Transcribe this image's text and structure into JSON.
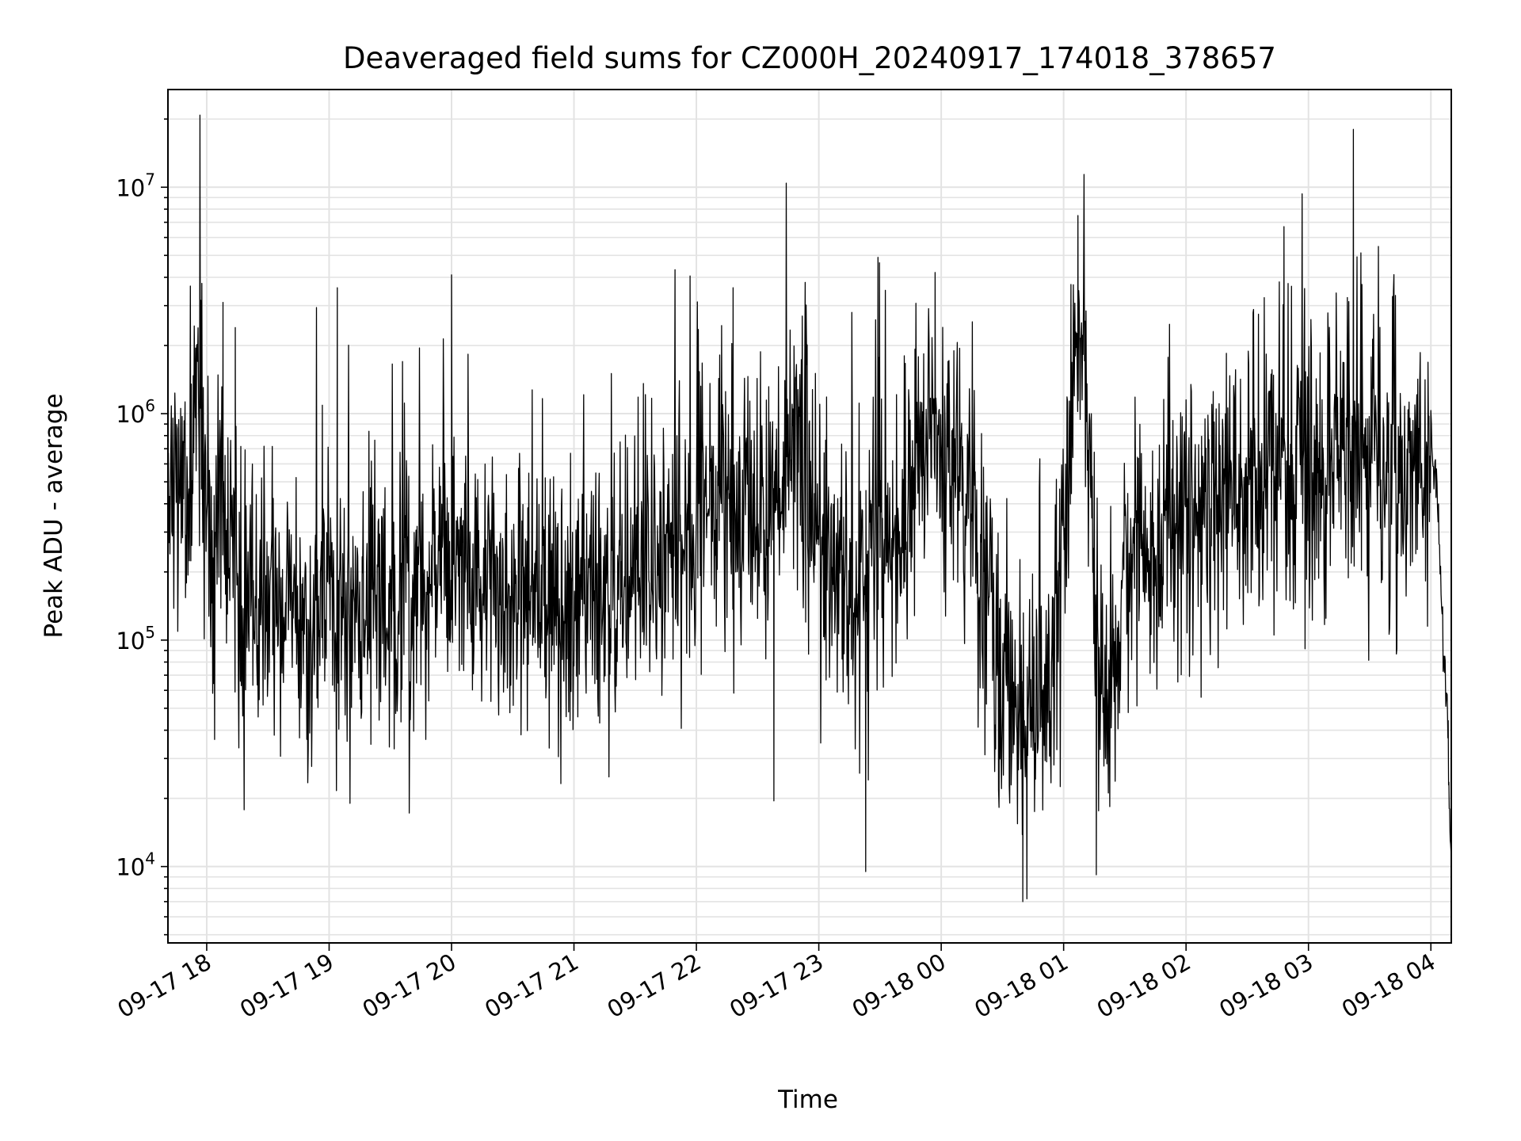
{
  "chart_data": {
    "type": "line",
    "title": "Deaveraged field sums for CZ000H_20240917_174018_378657",
    "xlabel": "Time",
    "ylabel": "Peak ADU - average",
    "y_scale": "log",
    "ylim": [
      4600,
      27000000
    ],
    "xlim": [
      "2024-09-17 17:41",
      "2024-09-18 04:10"
    ],
    "grid": true,
    "line_color": "#000000",
    "x_ticks": [
      {
        "t": "2024-09-17 18:00",
        "label": "09-17 18"
      },
      {
        "t": "2024-09-17 19:00",
        "label": "09-17 19"
      },
      {
        "t": "2024-09-17 20:00",
        "label": "09-17 20"
      },
      {
        "t": "2024-09-17 21:00",
        "label": "09-17 21"
      },
      {
        "t": "2024-09-17 22:00",
        "label": "09-17 22"
      },
      {
        "t": "2024-09-17 23:00",
        "label": "09-17 23"
      },
      {
        "t": "2024-09-18 00:00",
        "label": "09-18 00"
      },
      {
        "t": "2024-09-18 01:00",
        "label": "09-18 01"
      },
      {
        "t": "2024-09-18 02:00",
        "label": "09-18 02"
      },
      {
        "t": "2024-09-18 03:00",
        "label": "09-18 03"
      },
      {
        "t": "2024-09-18 04:00",
        "label": "09-18 04"
      }
    ],
    "y_ticks": [
      {
        "value": 10000,
        "base": "10",
        "exp": "4"
      },
      {
        "value": 100000,
        "base": "10",
        "exp": "5"
      },
      {
        "value": 1000000,
        "base": "10",
        "exp": "6"
      },
      {
        "value": 10000000,
        "base": "10",
        "exp": "7"
      }
    ],
    "series": [
      {
        "x": [
          "2024-09-17 17:41",
          "2024-09-17 17:47",
          "2024-09-17 17:52",
          "2024-09-17 17:56",
          "2024-09-17 17:59",
          "2024-09-17 18:02",
          "2024-09-17 18:06",
          "2024-09-17 18:09",
          "2024-09-17 18:12",
          "2024-09-17 18:16",
          "2024-09-17 18:20",
          "2024-09-17 18:25",
          "2024-09-17 18:30",
          "2024-09-17 18:35",
          "2024-09-17 18:40",
          "2024-09-17 18:45",
          "2024-09-17 18:50",
          "2024-09-17 18:55",
          "2024-09-17 19:00",
          "2024-09-17 19:05",
          "2024-09-17 19:10",
          "2024-09-17 19:20",
          "2024-09-17 19:30",
          "2024-09-17 19:40",
          "2024-09-17 19:50",
          "2024-09-17 19:55",
          "2024-09-17 20:00",
          "2024-09-17 20:05",
          "2024-09-17 20:10",
          "2024-09-17 20:20",
          "2024-09-17 20:30",
          "2024-09-17 20:40",
          "2024-09-17 20:50",
          "2024-09-17 21:00",
          "2024-09-17 21:10",
          "2024-09-17 21:20",
          "2024-09-17 21:30",
          "2024-09-17 21:40",
          "2024-09-17 21:50",
          "2024-09-17 22:00",
          "2024-09-17 22:05",
          "2024-09-17 22:10",
          "2024-09-17 22:15",
          "2024-09-17 22:20",
          "2024-09-17 22:25",
          "2024-09-17 22:30",
          "2024-09-17 22:35",
          "2024-09-17 22:40",
          "2024-09-17 22:45",
          "2024-09-17 22:50",
          "2024-09-17 22:55",
          "2024-09-17 23:00",
          "2024-09-17 23:05",
          "2024-09-17 23:10",
          "2024-09-17 23:15",
          "2024-09-17 23:20",
          "2024-09-17 23:25",
          "2024-09-17 23:30",
          "2024-09-17 23:35",
          "2024-09-17 23:40",
          "2024-09-17 23:45",
          "2024-09-17 23:50",
          "2024-09-17 23:55",
          "2024-09-18 00:00",
          "2024-09-18 00:05",
          "2024-09-18 00:10",
          "2024-09-18 00:15",
          "2024-09-18 00:20",
          "2024-09-18 00:25",
          "2024-09-18 00:30",
          "2024-09-18 00:35",
          "2024-09-18 00:40",
          "2024-09-18 00:45",
          "2024-09-18 00:50",
          "2024-09-18 00:55",
          "2024-09-18 01:00",
          "2024-09-18 01:05",
          "2024-09-18 01:10",
          "2024-09-18 01:15",
          "2024-09-18 01:20",
          "2024-09-18 01:25",
          "2024-09-18 01:30",
          "2024-09-18 01:35",
          "2024-09-18 01:40",
          "2024-09-18 01:45",
          "2024-09-18 01:50",
          "2024-09-18 01:55",
          "2024-09-18 02:00",
          "2024-09-18 02:10",
          "2024-09-18 02:20",
          "2024-09-18 02:30",
          "2024-09-18 02:40",
          "2024-09-18 02:50",
          "2024-09-18 03:00",
          "2024-09-18 03:10",
          "2024-09-18 03:20",
          "2024-09-18 03:30",
          "2024-09-18 03:40",
          "2024-09-18 03:50",
          "2024-09-18 03:55",
          "2024-09-18 04:00",
          "2024-09-18 04:03",
          "2024-09-18 04:06",
          "2024-09-18 04:08",
          "2024-09-18 04:10"
        ],
        "y": [
          600000,
          450000,
          500000,
          1300000,
          900000,
          300000,
          550000,
          250000,
          300000,
          110000,
          160000,
          130000,
          150000,
          170000,
          180000,
          140000,
          130000,
          150000,
          170000,
          140000,
          130000,
          160000,
          150000,
          140000,
          170000,
          250000,
          230000,
          220000,
          170000,
          140000,
          150000,
          160000,
          140000,
          170000,
          190000,
          200000,
          180000,
          220000,
          260000,
          300000,
          450000,
          500000,
          350000,
          320000,
          400000,
          400000,
          420000,
          500000,
          650000,
          800000,
          500000,
          300000,
          250000,
          200000,
          130000,
          180000,
          250000,
          350000,
          250000,
          350000,
          500000,
          700000,
          1000000,
          600000,
          500000,
          550000,
          400000,
          200000,
          130000,
          80000,
          50000,
          40000,
          50000,
          40000,
          120000,
          400000,
          1500000,
          2500000,
          150000,
          50000,
          80000,
          200000,
          250000,
          250000,
          300000,
          330000,
          350000,
          400000,
          450000,
          500000,
          500000,
          500000,
          600000,
          600000,
          700000,
          800000,
          700000,
          500000,
          550000,
          650000,
          850000,
          500000,
          90000,
          50000,
          10000
        ]
      }
    ],
    "spikes": [
      {
        "x": "2024-09-17 18:08",
        "y": 3100000
      },
      {
        "x": "2024-09-17 18:14",
        "y": 2400000
      },
      {
        "x": "2024-09-17 19:04",
        "y": 3600000
      },
      {
        "x": "2024-09-17 20:00",
        "y": 4100000
      },
      {
        "x": "2024-09-17 22:18",
        "y": 3600000
      },
      {
        "x": "2024-09-17 23:29",
        "y": 4900000
      },
      {
        "x": "2024-09-17 23:57",
        "y": 4200000
      },
      {
        "x": "2024-09-18 01:07",
        "y": 7500000
      },
      {
        "x": "2024-09-18 02:48",
        "y": 6700000
      },
      {
        "x": "2024-09-18 03:22",
        "y": 18000000
      },
      {
        "x": "2024-09-17 23:23",
        "y": 9500
      },
      {
        "x": "2024-09-18 00:40",
        "y": 7000
      },
      {
        "x": "2024-09-18 00:42",
        "y": 7200
      },
      {
        "x": "2024-09-18 01:16",
        "y": 9200
      },
      {
        "x": "2024-09-17 22:38",
        "y": 19500
      }
    ]
  }
}
